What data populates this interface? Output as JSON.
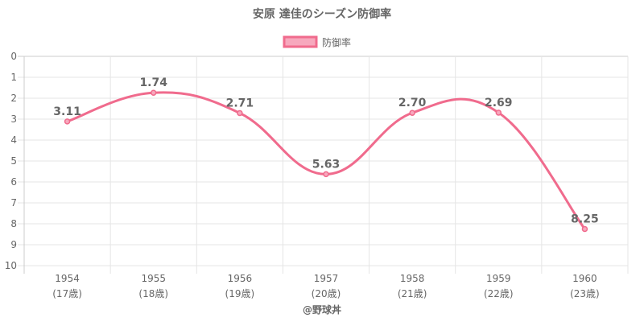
{
  "chart_data": {
    "type": "line",
    "title": "安原 達佳のシーズン防御率",
    "legend": {
      "label": "防御率",
      "position": "top"
    },
    "x": [
      "1954",
      "1955",
      "1956",
      "1957",
      "1958",
      "1959",
      "1960"
    ],
    "x_sublabels": [
      "(17歳)",
      "(18歳)",
      "(19歳)",
      "(20歳)",
      "(21歳)",
      "(22歳)",
      "(23歳)"
    ],
    "series": [
      {
        "name": "防御率",
        "values": [
          3.11,
          1.74,
          2.71,
          5.63,
          2.7,
          2.69,
          8.25
        ],
        "labels": [
          "3.11",
          "1.74",
          "2.71",
          "5.63",
          "2.70",
          "2.69",
          "8.25"
        ]
      }
    ],
    "ylim": [
      0,
      10
    ],
    "y_reversed": true,
    "y_ticks": [
      "0",
      "1",
      "2",
      "3",
      "4",
      "5",
      "6",
      "7",
      "8",
      "9",
      "10"
    ],
    "grid": true,
    "colors": {
      "line": "#f06b8d",
      "fill": "#f7a8bd",
      "grid": "#e5e5e5",
      "axis": "#cccccc",
      "text": "#666666"
    },
    "credit": "@野球丼"
  }
}
